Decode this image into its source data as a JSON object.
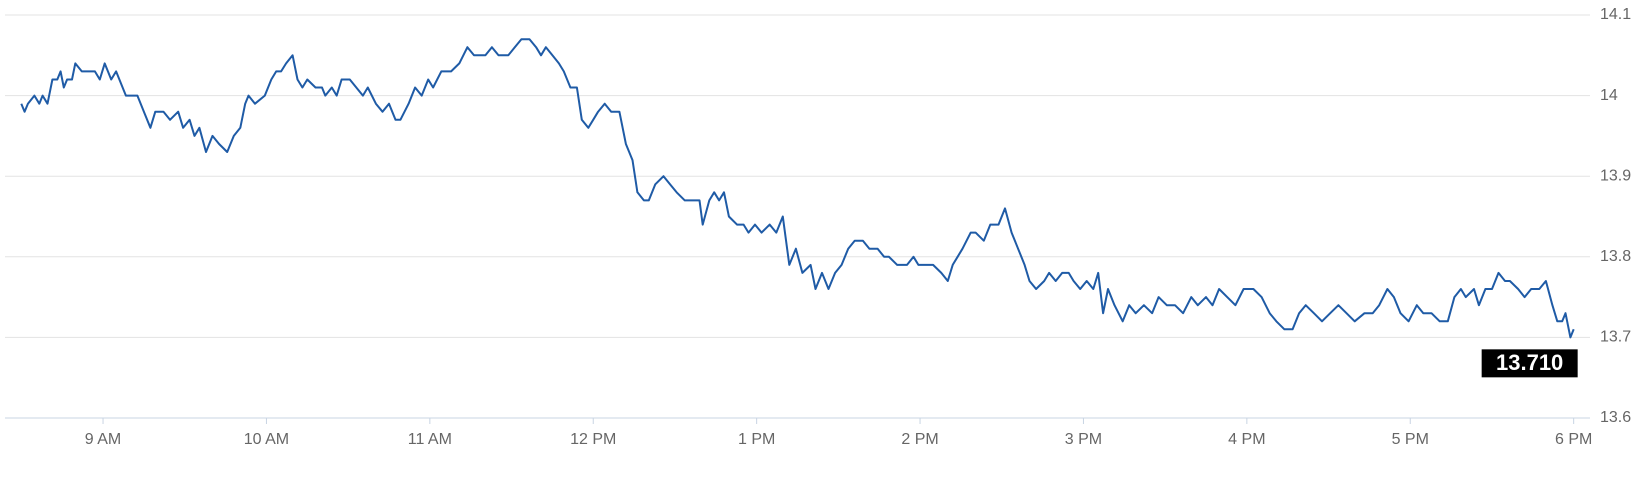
{
  "chart_data": {
    "type": "line",
    "x": [
      8.5,
      8.52,
      8.54,
      8.58,
      8.61,
      8.63,
      8.66,
      8.69,
      8.72,
      8.74,
      8.76,
      8.78,
      8.81,
      8.83,
      8.87,
      8.95,
      8.98,
      9.01,
      9.05,
      9.08,
      9.14,
      9.21,
      9.25,
      9.29,
      9.32,
      9.37,
      9.41,
      9.46,
      9.49,
      9.53,
      9.56,
      9.59,
      9.63,
      9.67,
      9.71,
      9.76,
      9.8,
      9.84,
      9.87,
      9.89,
      9.93,
      9.99,
      10.03,
      10.06,
      10.09,
      10.12,
      10.16,
      10.19,
      10.22,
      10.25,
      10.3,
      10.34,
      10.36,
      10.4,
      10.43,
      10.46,
      10.51,
      10.55,
      10.59,
      10.62,
      10.67,
      10.71,
      10.75,
      10.79,
      10.82,
      10.87,
      10.91,
      10.95,
      10.99,
      11.02,
      11.07,
      11.13,
      11.18,
      11.23,
      11.27,
      11.34,
      11.38,
      11.42,
      11.48,
      11.52,
      11.56,
      11.61,
      11.65,
      11.68,
      11.71,
      11.75,
      11.79,
      11.82,
      11.86,
      11.9,
      11.93,
      11.97,
      12.0,
      12.03,
      12.07,
      12.11,
      12.16,
      12.2,
      12.24,
      12.27,
      12.31,
      12.34,
      12.38,
      12.43,
      12.47,
      12.51,
      12.56,
      12.61,
      12.65,
      12.67,
      12.71,
      12.74,
      12.77,
      12.8,
      12.83,
      12.88,
      12.92,
      12.95,
      12.99,
      13.03,
      13.08,
      13.12,
      13.16,
      13.2,
      13.24,
      13.28,
      13.33,
      13.36,
      13.4,
      13.44,
      13.48,
      13.52,
      13.56,
      13.6,
      13.65,
      13.69,
      13.74,
      13.78,
      13.81,
      13.86,
      13.92,
      13.96,
      13.99,
      14.03,
      14.08,
      14.13,
      14.17,
      14.2,
      14.23,
      14.26,
      14.31,
      14.34,
      14.39,
      14.43,
      14.48,
      14.52,
      14.56,
      14.6,
      14.64,
      14.67,
      14.71,
      14.76,
      14.79,
      14.83,
      14.87,
      14.91,
      14.94,
      14.98,
      15.02,
      15.06,
      15.09,
      15.12,
      15.15,
      15.19,
      15.24,
      15.28,
      15.32,
      15.37,
      15.42,
      15.46,
      15.51,
      15.56,
      15.61,
      15.66,
      15.7,
      15.75,
      15.79,
      15.83,
      15.88,
      15.93,
      15.98,
      16.04,
      16.09,
      16.14,
      16.18,
      16.23,
      16.28,
      16.32,
      16.36,
      16.41,
      16.46,
      16.51,
      16.56,
      16.61,
      16.66,
      16.72,
      16.77,
      16.81,
      16.86,
      16.9,
      16.94,
      16.99,
      17.04,
      17.08,
      17.13,
      17.18,
      17.23,
      17.27,
      17.31,
      17.34,
      17.39,
      17.42,
      17.46,
      17.5,
      17.54,
      17.58,
      17.61,
      17.66,
      17.7,
      17.74,
      17.79,
      17.83,
      17.87,
      17.9,
      17.93,
      17.95,
      17.98,
      18.0
    ],
    "series": [
      {
        "color": "#1f5ba6",
        "values": [
          13.99,
          13.98,
          13.99,
          14.0,
          13.99,
          14.0,
          13.99,
          14.02,
          14.02,
          14.03,
          14.01,
          14.02,
          14.02,
          14.04,
          14.03,
          14.03,
          14.02,
          14.04,
          14.02,
          14.03,
          14.0,
          14.0,
          13.98,
          13.96,
          13.98,
          13.98,
          13.97,
          13.98,
          13.96,
          13.97,
          13.95,
          13.96,
          13.93,
          13.95,
          13.94,
          13.93,
          13.95,
          13.96,
          13.99,
          14.0,
          13.99,
          14.0,
          14.02,
          14.03,
          14.03,
          14.04,
          14.05,
          14.02,
          14.01,
          14.02,
          14.01,
          14.01,
          14.0,
          14.01,
          14.0,
          14.02,
          14.02,
          14.01,
          14.0,
          14.01,
          13.99,
          13.98,
          13.99,
          13.97,
          13.97,
          13.99,
          14.01,
          14.0,
          14.02,
          14.01,
          14.03,
          14.03,
          14.04,
          14.06,
          14.05,
          14.05,
          14.06,
          14.05,
          14.05,
          14.06,
          14.07,
          14.07,
          14.06,
          14.05,
          14.06,
          14.05,
          14.04,
          14.03,
          14.01,
          14.01,
          13.97,
          13.96,
          13.97,
          13.98,
          13.99,
          13.98,
          13.98,
          13.94,
          13.92,
          13.88,
          13.87,
          13.87,
          13.89,
          13.9,
          13.89,
          13.88,
          13.87,
          13.87,
          13.87,
          13.84,
          13.87,
          13.88,
          13.87,
          13.88,
          13.85,
          13.84,
          13.84,
          13.83,
          13.84,
          13.83,
          13.84,
          13.83,
          13.85,
          13.79,
          13.81,
          13.78,
          13.79,
          13.76,
          13.78,
          13.76,
          13.78,
          13.79,
          13.81,
          13.82,
          13.82,
          13.81,
          13.81,
          13.8,
          13.8,
          13.79,
          13.79,
          13.8,
          13.79,
          13.79,
          13.79,
          13.78,
          13.77,
          13.79,
          13.8,
          13.81,
          13.83,
          13.83,
          13.82,
          13.84,
          13.84,
          13.86,
          13.83,
          13.81,
          13.79,
          13.77,
          13.76,
          13.77,
          13.78,
          13.77,
          13.78,
          13.78,
          13.77,
          13.76,
          13.77,
          13.76,
          13.78,
          13.73,
          13.76,
          13.74,
          13.72,
          13.74,
          13.73,
          13.74,
          13.73,
          13.75,
          13.74,
          13.74,
          13.73,
          13.75,
          13.74,
          13.75,
          13.74,
          13.76,
          13.75,
          13.74,
          13.76,
          13.76,
          13.75,
          13.73,
          13.72,
          13.71,
          13.71,
          13.73,
          13.74,
          13.73,
          13.72,
          13.73,
          13.74,
          13.73,
          13.72,
          13.73,
          13.73,
          13.74,
          13.76,
          13.75,
          13.73,
          13.72,
          13.74,
          13.73,
          13.73,
          13.72,
          13.72,
          13.75,
          13.76,
          13.75,
          13.76,
          13.74,
          13.76,
          13.76,
          13.78,
          13.77,
          13.77,
          13.76,
          13.75,
          13.76,
          13.76,
          13.77,
          13.74,
          13.72,
          13.72,
          13.73,
          13.7,
          13.71
        ]
      }
    ],
    "last_label": {
      "value": 13.71,
      "label": "13.710"
    },
    "xlim": [
      8.4,
      18.1
    ],
    "xticks": [
      {
        "value": 9,
        "label": "9 AM"
      },
      {
        "value": 10,
        "label": "10 AM"
      },
      {
        "value": 11,
        "label": "11 AM"
      },
      {
        "value": 12,
        "label": "12 PM"
      },
      {
        "value": 13,
        "label": "1 PM"
      },
      {
        "value": 14,
        "label": "2 PM"
      },
      {
        "value": 15,
        "label": "3 PM"
      },
      {
        "value": 16,
        "label": "4 PM"
      },
      {
        "value": 17,
        "label": "5 PM"
      },
      {
        "value": 18,
        "label": "6 PM"
      }
    ],
    "ylim": [
      13.6,
      14.1
    ],
    "yticks": [
      13.6,
      13.7,
      13.8,
      13.9,
      14,
      14.1
    ],
    "grid": true
  }
}
